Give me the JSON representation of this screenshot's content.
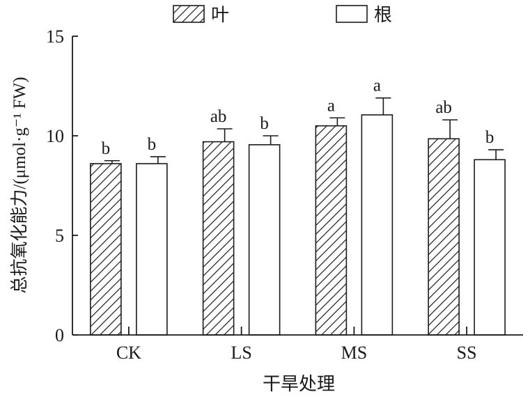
{
  "chart_data": {
    "type": "bar",
    "categories": [
      "CK",
      "LS",
      "MS",
      "SS"
    ],
    "series": [
      {
        "name": "叶",
        "pattern": "diagonal-hatch",
        "values": [
          8.6,
          9.7,
          10.5,
          9.85
        ],
        "errors": [
          0.15,
          0.65,
          0.4,
          0.95
        ],
        "letters": [
          "b",
          "ab",
          "a",
          "ab"
        ]
      },
      {
        "name": "根",
        "pattern": "none",
        "values": [
          8.6,
          9.55,
          11.05,
          8.8
        ],
        "errors": [
          0.35,
          0.45,
          0.85,
          0.5
        ],
        "letters": [
          "b",
          "b",
          "a",
          "b"
        ]
      }
    ],
    "xlabel": "干旱处理",
    "ylabel": "总抗氧化能力/(μmol·g⁻¹ FW)",
    "ylim": [
      0,
      15
    ],
    "yticks": [
      "0",
      "5",
      "10",
      "15"
    ],
    "legend_position": "top-center",
    "grid": false,
    "colors": {
      "axis": "#1a1a1a",
      "bar_fill": "#ffffff"
    }
  }
}
